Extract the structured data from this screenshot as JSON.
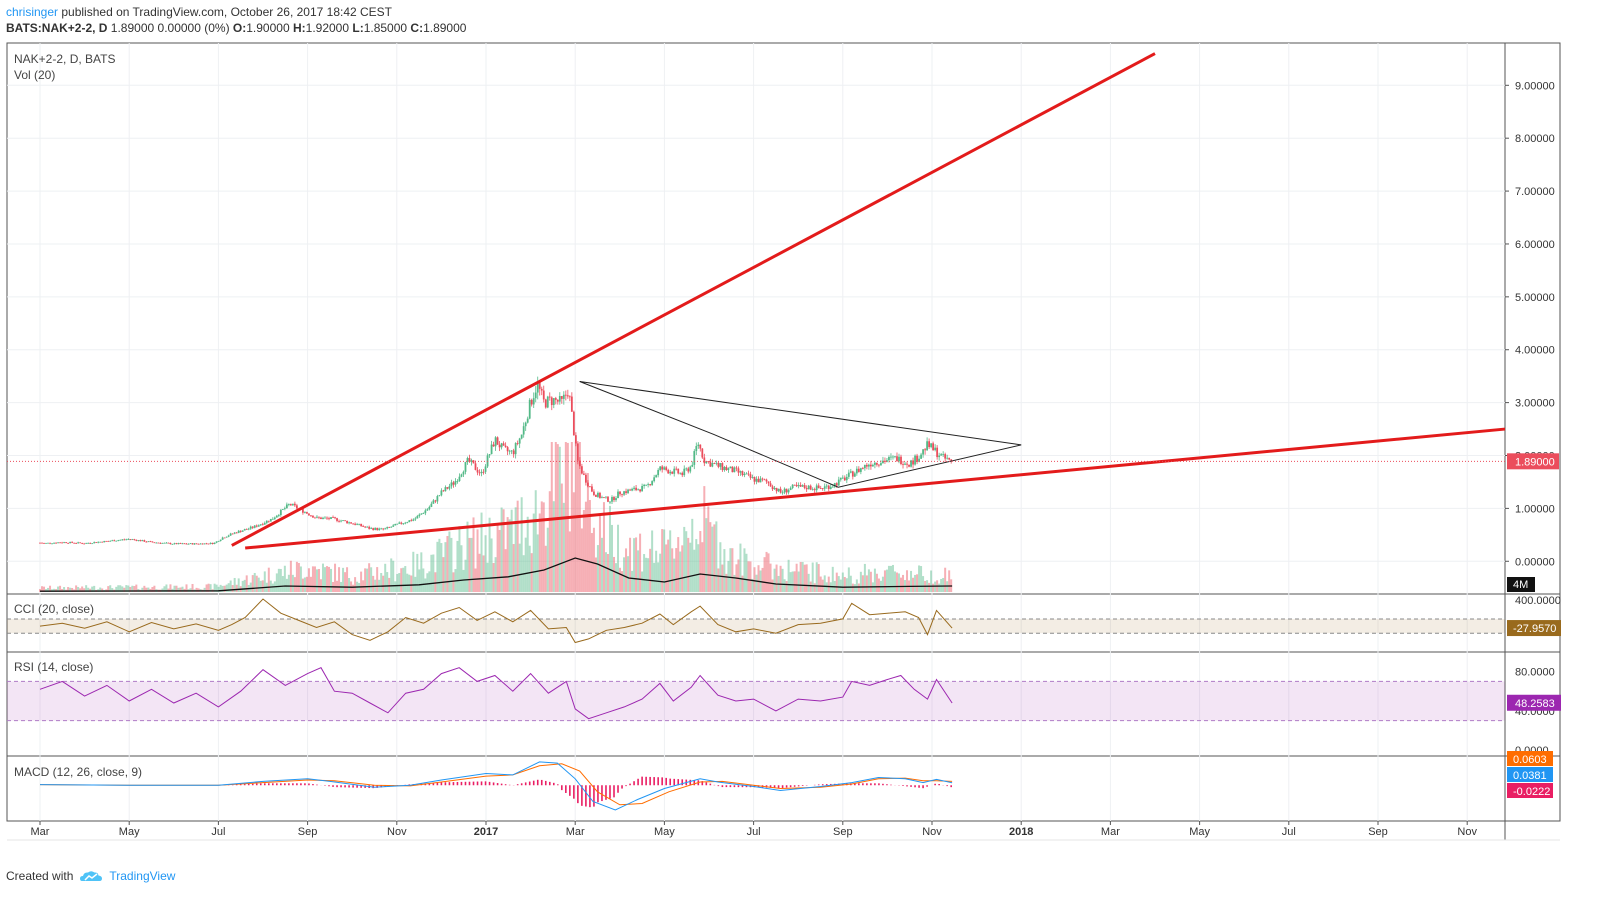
{
  "header": {
    "author": "chrisinger",
    "published": " published on TradingView.com, October 26, 2017 18:42 CEST",
    "symbol_line_bold": "BATS:NAK+2-2, D",
    "symbol_line_rest": "  1.89000 0.00000 (0%) ",
    "ohlc": [
      {
        "k": "O:",
        "v": "1.90000"
      },
      {
        "k": "H:",
        "v": "1.92000"
      },
      {
        "k": "L:",
        "v": "1.85000"
      },
      {
        "k": "C:",
        "v": "1.89000"
      }
    ]
  },
  "footer": {
    "created_with": "Created with",
    "brand": "TradingView",
    "logo_icon": "tradingview-cloud-icon"
  },
  "colors": {
    "up": "#53b987",
    "down": "#eb4d5c",
    "trendline": "#e31b1b",
    "triangle": "#222222",
    "cci": "#996a1d",
    "rsi": "#9c27b0",
    "macd": "#2196f3",
    "signal": "#ff6d00",
    "hist": "#e91e63"
  },
  "chart_data": {
    "type": "candlestick",
    "symbol_label": "NAK+2-2, D, BATS",
    "volume_label": "Vol (20)",
    "price_axis_ticks": [
      "9.00000",
      "8.00000",
      "7.00000",
      "6.00000",
      "5.00000",
      "4.00000",
      "3.00000",
      "2.00000",
      "1.00000",
      "0.00000"
    ],
    "price_ylim": [
      -0.6,
      9.8
    ],
    "x_axis_ticks": [
      {
        "label": "Mar",
        "bold": false
      },
      {
        "label": "May",
        "bold": false
      },
      {
        "label": "Jul",
        "bold": false
      },
      {
        "label": "Sep",
        "bold": false
      },
      {
        "label": "Nov",
        "bold": false
      },
      {
        "label": "2017",
        "bold": true
      },
      {
        "label": "Mar",
        "bold": false
      },
      {
        "label": "May",
        "bold": false
      },
      {
        "label": "Jul",
        "bold": false
      },
      {
        "label": "Sep",
        "bold": false
      },
      {
        "label": "Nov",
        "bold": false
      },
      {
        "label": "2018",
        "bold": true
      },
      {
        "label": "Mar",
        "bold": false
      },
      {
        "label": "May",
        "bold": false
      },
      {
        "label": "Jul",
        "bold": false
      },
      {
        "label": "Sep",
        "bold": false
      },
      {
        "label": "Nov",
        "bold": false
      }
    ],
    "last_price": "1.89000",
    "volume_badge": "4M",
    "price_path": [
      [
        0.0,
        0.35
      ],
      [
        0.1,
        0.34
      ],
      [
        0.5,
        0.36
      ],
      [
        1.0,
        0.34
      ],
      [
        1.5,
        0.38
      ],
      [
        2.0,
        0.42
      ],
      [
        2.5,
        0.36
      ],
      [
        3.0,
        0.33
      ],
      [
        3.5,
        0.33
      ],
      [
        3.9,
        0.34
      ],
      [
        4.1,
        0.45
      ],
      [
        4.4,
        0.55
      ],
      [
        4.8,
        0.65
      ],
      [
        5.2,
        0.8
      ],
      [
        5.6,
        1.08
      ],
      [
        5.9,
        0.95
      ],
      [
        6.2,
        0.82
      ],
      [
        6.6,
        0.8
      ],
      [
        7.0,
        0.72
      ],
      [
        7.4,
        0.62
      ],
      [
        7.7,
        0.6
      ],
      [
        8.1,
        0.72
      ],
      [
        8.4,
        0.8
      ],
      [
        8.7,
        1.0
      ],
      [
        9.0,
        1.3
      ],
      [
        9.3,
        1.5
      ],
      [
        9.6,
        1.9
      ],
      [
        9.9,
        1.65
      ],
      [
        10.2,
        2.3
      ],
      [
        10.4,
        2.1
      ],
      [
        10.6,
        2.05
      ],
      [
        10.8,
        2.4
      ],
      [
        11.0,
        3.0
      ],
      [
        11.15,
        3.35
      ],
      [
        11.3,
        3.0
      ],
      [
        11.5,
        3.05
      ],
      [
        11.7,
        3.0
      ],
      [
        11.85,
        3.25
      ],
      [
        11.95,
        2.6
      ],
      [
        12.05,
        1.9
      ],
      [
        12.2,
        1.6
      ],
      [
        12.4,
        1.3
      ],
      [
        12.6,
        1.2
      ],
      [
        12.8,
        1.15
      ],
      [
        13.0,
        1.3
      ],
      [
        13.3,
        1.35
      ],
      [
        13.6,
        1.4
      ],
      [
        13.9,
        1.75
      ],
      [
        14.2,
        1.7
      ],
      [
        14.4,
        1.65
      ],
      [
        14.6,
        1.8
      ],
      [
        14.75,
        2.25
      ],
      [
        14.9,
        1.9
      ],
      [
        15.2,
        1.8
      ],
      [
        15.6,
        1.7
      ],
      [
        16.0,
        1.55
      ],
      [
        16.3,
        1.5
      ],
      [
        16.6,
        1.3
      ],
      [
        16.9,
        1.4
      ],
      [
        17.2,
        1.4
      ],
      [
        17.5,
        1.38
      ],
      [
        17.8,
        1.45
      ],
      [
        18.0,
        1.55
      ],
      [
        18.3,
        1.7
      ],
      [
        18.6,
        1.85
      ],
      [
        18.9,
        1.9
      ],
      [
        19.2,
        1.95
      ],
      [
        19.5,
        1.85
      ],
      [
        19.7,
        1.98
      ],
      [
        19.9,
        2.2
      ],
      [
        20.05,
        2.1
      ],
      [
        20.25,
        1.95
      ],
      [
        20.45,
        1.89
      ]
    ],
    "volume_path": [
      [
        0.0,
        0.03
      ],
      [
        3.9,
        0.04
      ],
      [
        5.0,
        0.12
      ],
      [
        6.0,
        0.18
      ],
      [
        7.0,
        0.12
      ],
      [
        8.5,
        0.2
      ],
      [
        9.5,
        0.35
      ],
      [
        10.5,
        0.45
      ],
      [
        11.2,
        0.6
      ],
      [
        11.8,
        0.95
      ],
      [
        12.0,
        1.0
      ],
      [
        12.4,
        0.55
      ],
      [
        13.0,
        0.35
      ],
      [
        14.0,
        0.3
      ],
      [
        14.8,
        0.55
      ],
      [
        15.5,
        0.25
      ],
      [
        16.5,
        0.18
      ],
      [
        18.0,
        0.12
      ],
      [
        19.0,
        0.15
      ],
      [
        20.45,
        0.12
      ]
    ],
    "volume_sma_path": [
      [
        0.0,
        0.02
      ],
      [
        4.0,
        0.03
      ],
      [
        5.5,
        0.15
      ],
      [
        7.0,
        0.12
      ],
      [
        8.5,
        0.18
      ],
      [
        9.5,
        0.3
      ],
      [
        10.5,
        0.38
      ],
      [
        11.3,
        0.55
      ],
      [
        12.0,
        0.85
      ],
      [
        12.5,
        0.7
      ],
      [
        13.2,
        0.35
      ],
      [
        14.0,
        0.25
      ],
      [
        14.8,
        0.45
      ],
      [
        15.6,
        0.35
      ],
      [
        16.5,
        0.2
      ],
      [
        18.0,
        0.12
      ],
      [
        19.5,
        0.14
      ],
      [
        20.45,
        0.15
      ]
    ],
    "trendlines": [
      {
        "name": "upper",
        "from": [
          4.3,
          0.3
        ],
        "to": [
          25.0,
          9.6
        ]
      },
      {
        "name": "lower",
        "from": [
          4.6,
          0.25
        ],
        "to": [
          34.2,
          2.5
        ]
      }
    ],
    "triangle": [
      [
        12.1,
        3.4
      ],
      [
        22.0,
        2.2
      ],
      [
        17.9,
        1.4
      ],
      [
        15.1,
        2.4
      ],
      [
        12.1,
        3.4
      ]
    ],
    "cci": {
      "label": "CCI (20, close)",
      "axis_tick": "400.0000",
      "last_value": "-27.9570",
      "band": [
        -100,
        100
      ],
      "ylim": [
        -350,
        450
      ],
      "path": [
        [
          0,
          0
        ],
        [
          0.5,
          40
        ],
        [
          1,
          -30
        ],
        [
          1.5,
          60
        ],
        [
          2,
          -80
        ],
        [
          2.5,
          50
        ],
        [
          3,
          -40
        ],
        [
          3.5,
          30
        ],
        [
          4,
          -60
        ],
        [
          4.3,
          20
        ],
        [
          4.6,
          120
        ],
        [
          5,
          380
        ],
        [
          5.4,
          180
        ],
        [
          5.8,
          80
        ],
        [
          6.2,
          -20
        ],
        [
          6.6,
          60
        ],
        [
          7,
          -120
        ],
        [
          7.4,
          -200
        ],
        [
          7.8,
          -80
        ],
        [
          8.2,
          120
        ],
        [
          8.6,
          40
        ],
        [
          9,
          180
        ],
        [
          9.4,
          260
        ],
        [
          9.8,
          80
        ],
        [
          10.2,
          200
        ],
        [
          10.6,
          60
        ],
        [
          11,
          220
        ],
        [
          11.4,
          -40
        ],
        [
          11.8,
          -20
        ],
        [
          12.0,
          -230
        ],
        [
          12.3,
          -180
        ],
        [
          12.7,
          -60
        ],
        [
          13.1,
          -20
        ],
        [
          13.5,
          40
        ],
        [
          13.9,
          170
        ],
        [
          14.2,
          20
        ],
        [
          14.6,
          200
        ],
        [
          14.8,
          280
        ],
        [
          15.2,
          20
        ],
        [
          15.6,
          -80
        ],
        [
          16.0,
          -40
        ],
        [
          16.5,
          -100
        ],
        [
          17.0,
          20
        ],
        [
          17.5,
          40
        ],
        [
          18.0,
          100
        ],
        [
          18.2,
          320
        ],
        [
          18.6,
          160
        ],
        [
          19.0,
          180
        ],
        [
          19.4,
          200
        ],
        [
          19.7,
          120
        ],
        [
          19.9,
          -120
        ],
        [
          20.1,
          220
        ],
        [
          20.45,
          -28
        ]
      ]
    },
    "rsi": {
      "label": "RSI (14, close)",
      "axis_ticks": [
        "80.0000",
        "40.0000",
        "0.0000"
      ],
      "last_value": "48.2583",
      "band": [
        30,
        70
      ],
      "ylim": [
        -5,
        100
      ],
      "path": [
        [
          0,
          62
        ],
        [
          0.5,
          70
        ],
        [
          1,
          55
        ],
        [
          1.5,
          66
        ],
        [
          2,
          50
        ],
        [
          2.5,
          62
        ],
        [
          3,
          48
        ],
        [
          3.5,
          58
        ],
        [
          4,
          44
        ],
        [
          4.5,
          60
        ],
        [
          5,
          82
        ],
        [
          5.5,
          66
        ],
        [
          6,
          78
        ],
        [
          6.3,
          84
        ],
        [
          6.6,
          60
        ],
        [
          7,
          58
        ],
        [
          7.4,
          48
        ],
        [
          7.8,
          38
        ],
        [
          8.2,
          58
        ],
        [
          8.6,
          62
        ],
        [
          9,
          78
        ],
        [
          9.4,
          84
        ],
        [
          9.8,
          70
        ],
        [
          10.2,
          76
        ],
        [
          10.6,
          60
        ],
        [
          11,
          78
        ],
        [
          11.4,
          58
        ],
        [
          11.8,
          70
        ],
        [
          12.0,
          42
        ],
        [
          12.3,
          32
        ],
        [
          12.7,
          38
        ],
        [
          13.1,
          44
        ],
        [
          13.5,
          52
        ],
        [
          13.9,
          68
        ],
        [
          14.2,
          50
        ],
        [
          14.6,
          64
        ],
        [
          14.8,
          76
        ],
        [
          15.2,
          56
        ],
        [
          15.6,
          50
        ],
        [
          16.0,
          52
        ],
        [
          16.5,
          40
        ],
        [
          17.0,
          52
        ],
        [
          17.5,
          50
        ],
        [
          18.0,
          54
        ],
        [
          18.2,
          70
        ],
        [
          18.6,
          66
        ],
        [
          19.0,
          72
        ],
        [
          19.3,
          76
        ],
        [
          19.6,
          62
        ],
        [
          19.9,
          52
        ],
        [
          20.1,
          72
        ],
        [
          20.45,
          48
        ]
      ]
    },
    "macd": {
      "label": "MACD (12, 26, close, 9)",
      "values": {
        "signal": "0.0603",
        "macd": "0.0381",
        "hist": "-0.0222"
      },
      "ylim": [
        -0.55,
        0.45
      ],
      "macd_path": [
        [
          0,
          0.01
        ],
        [
          2,
          0.0
        ],
        [
          4,
          0.0
        ],
        [
          5,
          0.06
        ],
        [
          6,
          0.1
        ],
        [
          6.5,
          0.06
        ],
        [
          7.5,
          -0.03
        ],
        [
          8.3,
          0.0
        ],
        [
          9,
          0.08
        ],
        [
          10,
          0.18
        ],
        [
          10.6,
          0.16
        ],
        [
          11.2,
          0.36
        ],
        [
          11.6,
          0.34
        ],
        [
          12.0,
          0.1
        ],
        [
          12.4,
          -0.25
        ],
        [
          12.9,
          -0.38
        ],
        [
          13.4,
          -0.22
        ],
        [
          14.0,
          -0.05
        ],
        [
          14.8,
          0.1
        ],
        [
          15.2,
          0.05
        ],
        [
          16,
          -0.02
        ],
        [
          16.6,
          -0.08
        ],
        [
          17.5,
          -0.02
        ],
        [
          18.2,
          0.04
        ],
        [
          18.8,
          0.12
        ],
        [
          19.4,
          0.1
        ],
        [
          19.8,
          0.04
        ],
        [
          20.1,
          0.09
        ],
        [
          20.45,
          0.038
        ]
      ],
      "signal_path": [
        [
          0,
          0.01
        ],
        [
          2,
          0.0
        ],
        [
          4,
          0.0
        ],
        [
          5,
          0.04
        ],
        [
          6,
          0.08
        ],
        [
          6.6,
          0.07
        ],
        [
          7.5,
          0.0
        ],
        [
          8.3,
          -0.01
        ],
        [
          9,
          0.05
        ],
        [
          10,
          0.14
        ],
        [
          10.6,
          0.16
        ],
        [
          11.2,
          0.3
        ],
        [
          11.7,
          0.33
        ],
        [
          12.1,
          0.22
        ],
        [
          12.5,
          -0.1
        ],
        [
          13.0,
          -0.3
        ],
        [
          13.5,
          -0.28
        ],
        [
          14.1,
          -0.1
        ],
        [
          14.8,
          0.05
        ],
        [
          15.3,
          0.06
        ],
        [
          16,
          0.0
        ],
        [
          16.6,
          -0.05
        ],
        [
          17.5,
          -0.03
        ],
        [
          18.2,
          0.02
        ],
        [
          18.8,
          0.1
        ],
        [
          19.4,
          0.11
        ],
        [
          19.8,
          0.07
        ],
        [
          20.1,
          0.07
        ],
        [
          20.45,
          0.06
        ]
      ]
    }
  }
}
